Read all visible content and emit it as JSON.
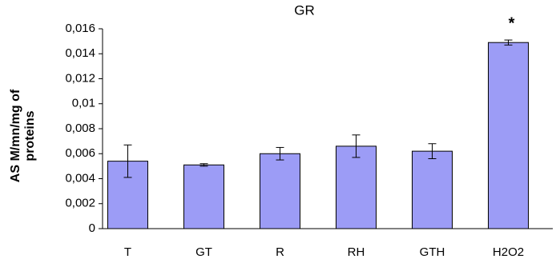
{
  "chart_data": {
    "type": "bar",
    "title": "GR",
    "ylabel": [
      "AS M/mn/mg of",
      "proteins"
    ],
    "categories": [
      "T",
      "GT",
      "R",
      "RH",
      "GTH",
      "H2O2"
    ],
    "values": [
      0.0054,
      0.0051,
      0.006,
      0.0066,
      0.0062,
      0.0149
    ],
    "errors": [
      0.0013,
      0.0001,
      0.0005,
      0.0009,
      0.0006,
      0.0002
    ],
    "color": "#9c9cf6",
    "annotations": [
      {
        "text": "*"
      }
    ],
    "ylim": [
      0,
      0.016
    ],
    "yticks": [
      0,
      {
        "value": 0.002,
        "label": "0,002"
      },
      {
        "value": 0.004,
        "label": "0,004"
      },
      {
        "value": 0.006,
        "label": "0,006"
      },
      {
        "value": 0.008,
        "label": "0,008"
      },
      {
        "value": 0.01,
        "label": "0,01"
      },
      {
        "value": 0.012,
        "label": "0,012"
      },
      {
        "value": 0.014,
        "label": "0,014"
      },
      {
        "value": 0.016,
        "label": "0,016"
      }
    ],
    "grid": false
  }
}
